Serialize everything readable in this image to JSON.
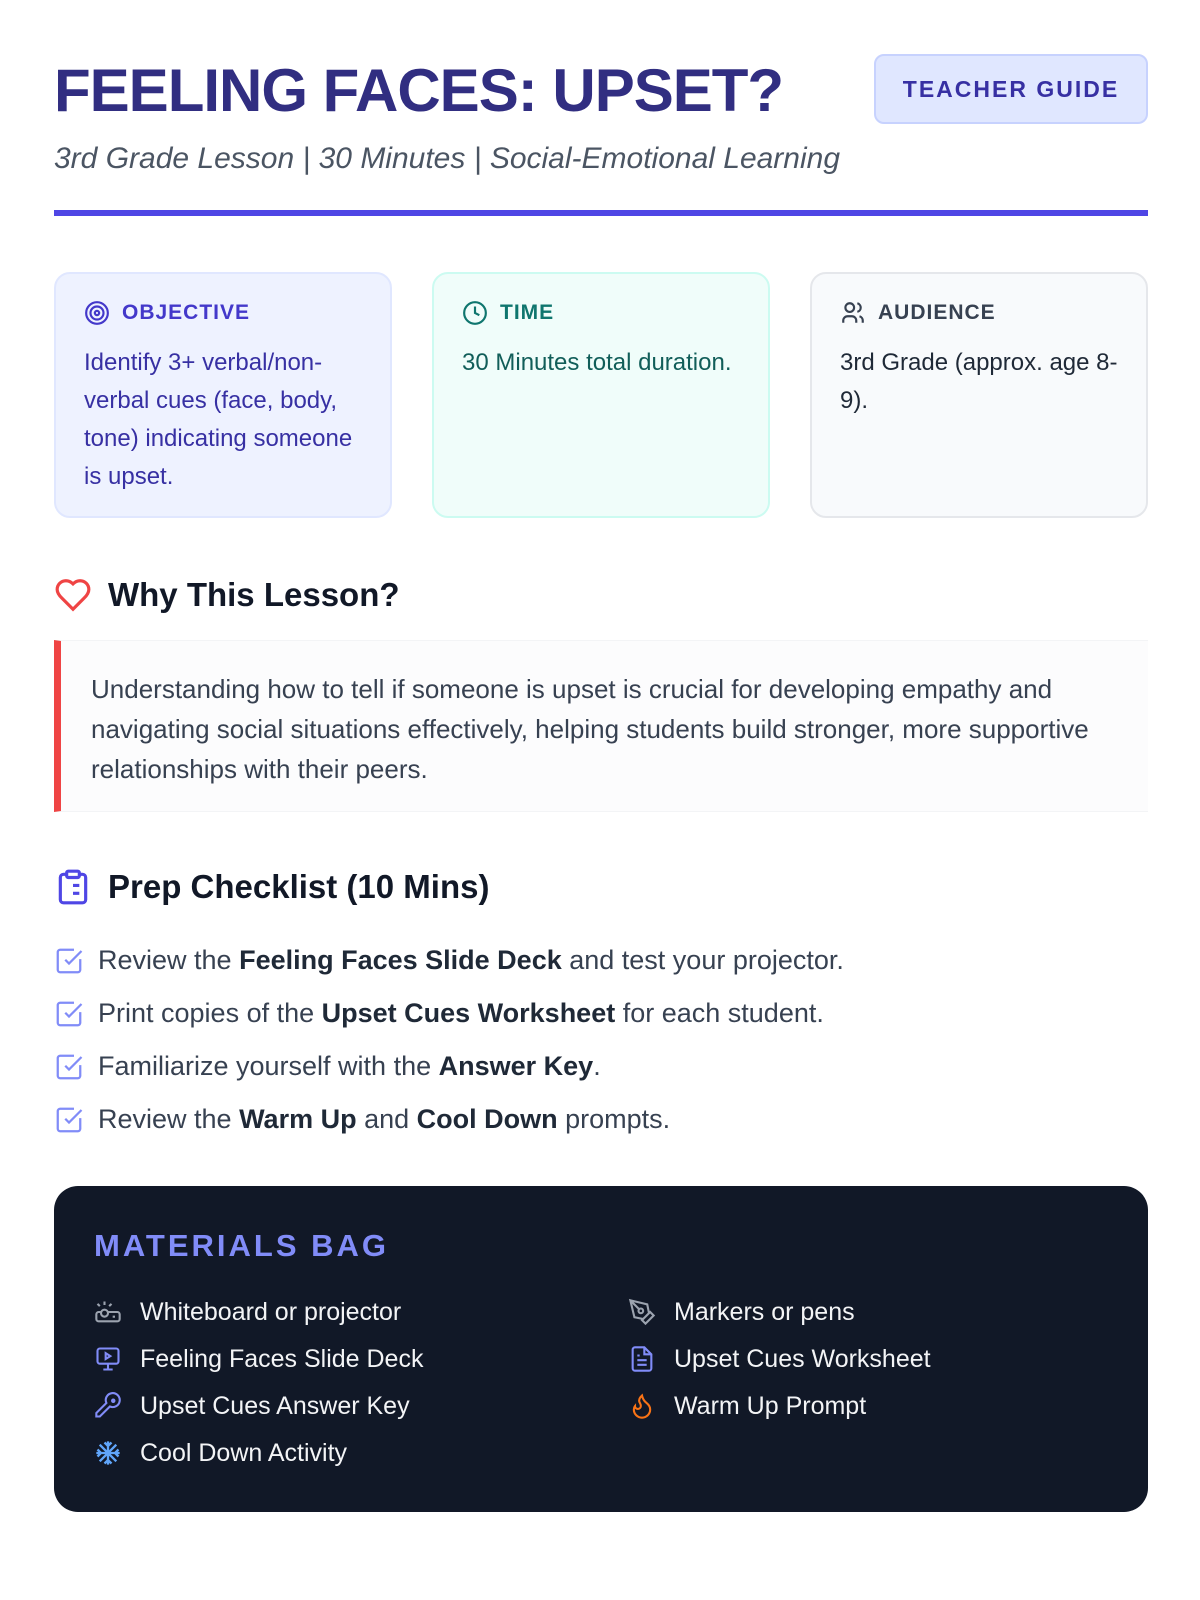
{
  "header": {
    "title": "FEELING FACES: UPSET?",
    "guide_button": "TEACHER GUIDE",
    "subtitle": "3rd Grade Lesson | 30 Minutes | Social-Emotional Learning",
    "accent": "#4f46e5"
  },
  "cards": [
    {
      "label": "OBJECTIVE",
      "icon": "target-icon",
      "text": "Identify 3+ verbal/non-verbal cues (face, body, tone) indicating someone is upset."
    },
    {
      "label": "TIME",
      "icon": "clock-icon",
      "text": "30 Minutes total duration."
    },
    {
      "label": "AUDIENCE",
      "icon": "users-icon",
      "text": "3rd Grade (approx. age 8-9)."
    }
  ],
  "why": {
    "heading": "Why This Lesson?",
    "text": "Understanding how to tell if someone is upset is crucial for developing empathy and navigating social situations effectively, helping students build stronger, more supportive relationships with their peers."
  },
  "prep": {
    "heading": "Prep Checklist (10 Mins)",
    "items": [
      {
        "a": "Review the ",
        "b": "Feeling Faces Slide Deck",
        "c": " and test your projector.",
        "d": "",
        "e": ""
      },
      {
        "a": "Print copies of the ",
        "b": "Upset Cues Worksheet",
        "c": " for each student.",
        "d": "",
        "e": ""
      },
      {
        "a": "Familiarize yourself with the ",
        "b": "Answer Key",
        "c": ".",
        "d": "",
        "e": ""
      },
      {
        "a": "Review the ",
        "b": "Warm Up",
        "c": " and ",
        "d": "Cool Down",
        "e": " prompts."
      }
    ]
  },
  "materials": {
    "heading": "MATERIALS BAG",
    "items": [
      {
        "label": "Whiteboard or projector",
        "icon": "projector-icon"
      },
      {
        "label": "Markers or pens",
        "icon": "pen-icon"
      },
      {
        "label": "Feeling Faces Slide Deck",
        "icon": "presentation-icon"
      },
      {
        "label": "Upset Cues Worksheet",
        "icon": "file-text-icon"
      },
      {
        "label": "Upset Cues Answer Key",
        "icon": "key-icon"
      },
      {
        "label": "Warm Up Prompt",
        "icon": "flame-icon"
      },
      {
        "label": "Cool Down Activity",
        "icon": "snowflake-icon"
      }
    ]
  }
}
